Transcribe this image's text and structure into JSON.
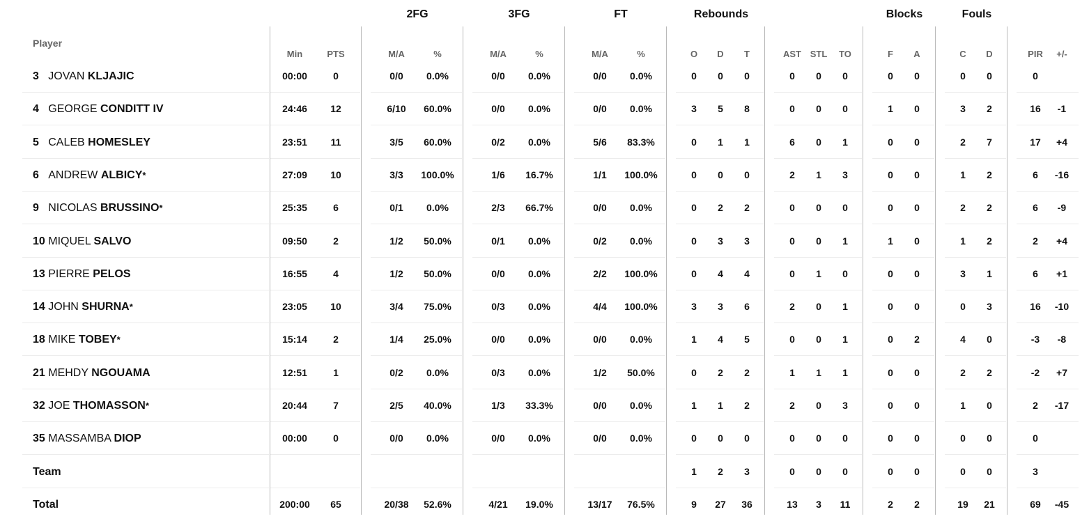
{
  "headers": {
    "groups": {
      "fg2": "2FG",
      "fg3": "3FG",
      "ft": "FT",
      "rebounds": "Rebounds",
      "blocks": "Blocks",
      "fouls": "Fouls"
    },
    "player": "Player",
    "sub": {
      "min": "Min",
      "pts": "PTS",
      "fg2_ma": "M/A",
      "fg2_pct": "%",
      "fg3_ma": "M/A",
      "fg3_pct": "%",
      "ft_ma": "M/A",
      "ft_pct": "%",
      "o": "O",
      "d": "D",
      "t": "T",
      "ast": "AST",
      "stl": "STL",
      "to": "TO",
      "bf": "F",
      "ba": "A",
      "fc": "C",
      "fd": "D",
      "pir": "PIR",
      "pm": "+/-"
    }
  },
  "rows": [
    {
      "num": "3",
      "first": "JOVAN",
      "last": "KLJAJIC",
      "star": "",
      "min": "00:00",
      "pts": "0",
      "fg2_ma": "0/0",
      "fg2_pct": "0.0%",
      "fg3_ma": "0/0",
      "fg3_pct": "0.0%",
      "ft_ma": "0/0",
      "ft_pct": "0.0%",
      "o": "0",
      "d": "0",
      "t": "0",
      "ast": "0",
      "stl": "0",
      "to": "0",
      "bf": "0",
      "ba": "0",
      "fc": "0",
      "fd": "0",
      "pir": "0",
      "pm": ""
    },
    {
      "num": "4",
      "first": "GEORGE",
      "last": "CONDITT IV",
      "star": "",
      "min": "24:46",
      "pts": "12",
      "fg2_ma": "6/10",
      "fg2_pct": "60.0%",
      "fg3_ma": "0/0",
      "fg3_pct": "0.0%",
      "ft_ma": "0/0",
      "ft_pct": "0.0%",
      "o": "3",
      "d": "5",
      "t": "8",
      "ast": "0",
      "stl": "0",
      "to": "0",
      "bf": "1",
      "ba": "0",
      "fc": "3",
      "fd": "2",
      "pir": "16",
      "pm": "-1"
    },
    {
      "num": "5",
      "first": "CALEB",
      "last": "HOMESLEY",
      "star": "",
      "min": "23:51",
      "pts": "11",
      "fg2_ma": "3/5",
      "fg2_pct": "60.0%",
      "fg3_ma": "0/2",
      "fg3_pct": "0.0%",
      "ft_ma": "5/6",
      "ft_pct": "83.3%",
      "o": "0",
      "d": "1",
      "t": "1",
      "ast": "6",
      "stl": "0",
      "to": "1",
      "bf": "0",
      "ba": "0",
      "fc": "2",
      "fd": "7",
      "pir": "17",
      "pm": "+4"
    },
    {
      "num": "6",
      "first": "ANDREW",
      "last": "ALBICY",
      "star": "*",
      "min": "27:09",
      "pts": "10",
      "fg2_ma": "3/3",
      "fg2_pct": "100.0%",
      "fg3_ma": "1/6",
      "fg3_pct": "16.7%",
      "ft_ma": "1/1",
      "ft_pct": "100.0%",
      "o": "0",
      "d": "0",
      "t": "0",
      "ast": "2",
      "stl": "1",
      "to": "3",
      "bf": "0",
      "ba": "0",
      "fc": "1",
      "fd": "2",
      "pir": "6",
      "pm": "-16"
    },
    {
      "num": "9",
      "first": "NICOLAS",
      "last": "BRUSSINO",
      "star": "*",
      "min": "25:35",
      "pts": "6",
      "fg2_ma": "0/1",
      "fg2_pct": "0.0%",
      "fg3_ma": "2/3",
      "fg3_pct": "66.7%",
      "ft_ma": "0/0",
      "ft_pct": "0.0%",
      "o": "0",
      "d": "2",
      "t": "2",
      "ast": "0",
      "stl": "0",
      "to": "0",
      "bf": "0",
      "ba": "0",
      "fc": "2",
      "fd": "2",
      "pir": "6",
      "pm": "-9"
    },
    {
      "num": "10",
      "first": "MIQUEL",
      "last": "SALVO",
      "star": "",
      "min": "09:50",
      "pts": "2",
      "fg2_ma": "1/2",
      "fg2_pct": "50.0%",
      "fg3_ma": "0/1",
      "fg3_pct": "0.0%",
      "ft_ma": "0/2",
      "ft_pct": "0.0%",
      "o": "0",
      "d": "3",
      "t": "3",
      "ast": "0",
      "stl": "0",
      "to": "1",
      "bf": "1",
      "ba": "0",
      "fc": "1",
      "fd": "2",
      "pir": "2",
      "pm": "+4"
    },
    {
      "num": "13",
      "first": "PIERRE",
      "last": "PELOS",
      "star": "",
      "min": "16:55",
      "pts": "4",
      "fg2_ma": "1/2",
      "fg2_pct": "50.0%",
      "fg3_ma": "0/0",
      "fg3_pct": "0.0%",
      "ft_ma": "2/2",
      "ft_pct": "100.0%",
      "o": "0",
      "d": "4",
      "t": "4",
      "ast": "0",
      "stl": "1",
      "to": "0",
      "bf": "0",
      "ba": "0",
      "fc": "3",
      "fd": "1",
      "pir": "6",
      "pm": "+1"
    },
    {
      "num": "14",
      "first": "JOHN",
      "last": "SHURNA",
      "star": "*",
      "min": "23:05",
      "pts": "10",
      "fg2_ma": "3/4",
      "fg2_pct": "75.0%",
      "fg3_ma": "0/3",
      "fg3_pct": "0.0%",
      "ft_ma": "4/4",
      "ft_pct": "100.0%",
      "o": "3",
      "d": "3",
      "t": "6",
      "ast": "2",
      "stl": "0",
      "to": "1",
      "bf": "0",
      "ba": "0",
      "fc": "0",
      "fd": "3",
      "pir": "16",
      "pm": "-10"
    },
    {
      "num": "18",
      "first": "MIKE",
      "last": "TOBEY",
      "star": "*",
      "min": "15:14",
      "pts": "2",
      "fg2_ma": "1/4",
      "fg2_pct": "25.0%",
      "fg3_ma": "0/0",
      "fg3_pct": "0.0%",
      "ft_ma": "0/0",
      "ft_pct": "0.0%",
      "o": "1",
      "d": "4",
      "t": "5",
      "ast": "0",
      "stl": "0",
      "to": "1",
      "bf": "0",
      "ba": "2",
      "fc": "4",
      "fd": "0",
      "pir": "-3",
      "pm": "-8"
    },
    {
      "num": "21",
      "first": "MEHDY",
      "last": "NGOUAMA",
      "star": "",
      "min": "12:51",
      "pts": "1",
      "fg2_ma": "0/2",
      "fg2_pct": "0.0%",
      "fg3_ma": "0/3",
      "fg3_pct": "0.0%",
      "ft_ma": "1/2",
      "ft_pct": "50.0%",
      "o": "0",
      "d": "2",
      "t": "2",
      "ast": "1",
      "stl": "1",
      "to": "1",
      "bf": "0",
      "ba": "0",
      "fc": "2",
      "fd": "2",
      "pir": "-2",
      "pm": "+7"
    },
    {
      "num": "32",
      "first": "JOE",
      "last": "THOMASSON",
      "star": "*",
      "min": "20:44",
      "pts": "7",
      "fg2_ma": "2/5",
      "fg2_pct": "40.0%",
      "fg3_ma": "1/3",
      "fg3_pct": "33.3%",
      "ft_ma": "0/0",
      "ft_pct": "0.0%",
      "o": "1",
      "d": "1",
      "t": "2",
      "ast": "2",
      "stl": "0",
      "to": "3",
      "bf": "0",
      "ba": "0",
      "fc": "1",
      "fd": "0",
      "pir": "2",
      "pm": "-17"
    },
    {
      "num": "35",
      "first": "MASSAMBA",
      "last": "DIOP",
      "star": "",
      "min": "00:00",
      "pts": "0",
      "fg2_ma": "0/0",
      "fg2_pct": "0.0%",
      "fg3_ma": "0/0",
      "fg3_pct": "0.0%",
      "ft_ma": "0/0",
      "ft_pct": "0.0%",
      "o": "0",
      "d": "0",
      "t": "0",
      "ast": "0",
      "stl": "0",
      "to": "0",
      "bf": "0",
      "ba": "0",
      "fc": "0",
      "fd": "0",
      "pir": "0",
      "pm": ""
    },
    {
      "label": "Team",
      "min": "",
      "pts": "",
      "fg2_ma": "",
      "fg2_pct": "",
      "fg3_ma": "",
      "fg3_pct": "",
      "ft_ma": "",
      "ft_pct": "",
      "o": "1",
      "d": "2",
      "t": "3",
      "ast": "0",
      "stl": "0",
      "to": "0",
      "bf": "0",
      "ba": "0",
      "fc": "0",
      "fd": "0",
      "pir": "3",
      "pm": ""
    },
    {
      "label": "Total",
      "min": "200:00",
      "pts": "65",
      "fg2_ma": "20/38",
      "fg2_pct": "52.6%",
      "fg3_ma": "4/21",
      "fg3_pct": "19.0%",
      "ft_ma": "13/17",
      "ft_pct": "76.5%",
      "o": "9",
      "d": "27",
      "t": "36",
      "ast": "13",
      "stl": "3",
      "to": "11",
      "bf": "2",
      "ba": "2",
      "fc": "19",
      "fd": "21",
      "pir": "69",
      "pm": "-45"
    }
  ]
}
